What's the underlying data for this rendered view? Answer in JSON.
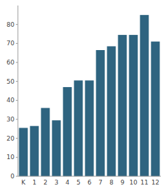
{
  "chart_data": {
    "type": "bar",
    "categories": [
      "K",
      "1",
      "2",
      "3",
      "4",
      "5",
      "6",
      "7",
      "8",
      "9",
      "10",
      "11",
      "12"
    ],
    "values": [
      25.5,
      26.5,
      36,
      29.5,
      47,
      50.5,
      50.5,
      66.5,
      68.5,
      74.5,
      74.5,
      85,
      71
    ],
    "color": "#2e6480",
    "ylim": [
      0,
      90
    ],
    "yticks": [
      0,
      10,
      20,
      30,
      40,
      50,
      60,
      70,
      80
    ],
    "grid": false
  }
}
